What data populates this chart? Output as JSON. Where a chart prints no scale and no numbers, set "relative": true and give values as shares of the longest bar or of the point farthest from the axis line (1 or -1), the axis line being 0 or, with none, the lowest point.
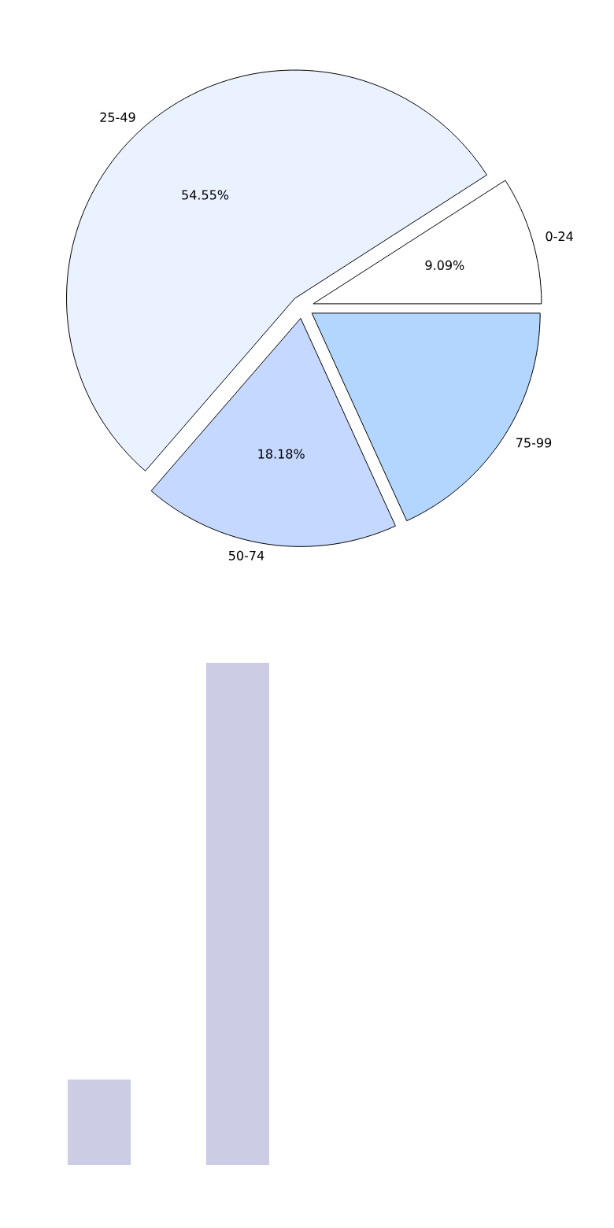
{
  "chart_data": [
    {
      "type": "pie",
      "categories": [
        "0-24",
        "25-49",
        "50-74",
        "75-99"
      ],
      "values": [
        9.09,
        54.55,
        18.18,
        18.18
      ],
      "colors": [
        "#ffffff",
        "#eaf1ff",
        "#c5d8ff",
        "#b3d6ff"
      ],
      "value_labels": [
        "9.09%",
        "54.55%",
        "18.18%",
        null
      ]
    },
    {
      "type": "bar",
      "categories": [
        null,
        null
      ],
      "values": [
        0.17,
        1
      ],
      "color": "#cccce4",
      "relative": true
    }
  ]
}
